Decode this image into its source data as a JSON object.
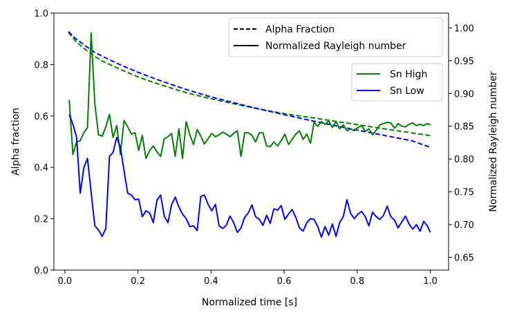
{
  "chart_data": {
    "type": "line",
    "xlabel": "Normalized time [s]",
    "ylabel_left": "Alpha fraction",
    "ylabel_right": "Normalized Rayleigh number",
    "xlim": [
      -0.03,
      1.05
    ],
    "ylim_left": [
      0.0,
      1.0
    ],
    "ylim_right": [
      0.6306,
      1.0225
    ],
    "xticks": [
      "0.0",
      "0.2",
      "0.4",
      "0.6",
      "0.8",
      "1.0"
    ],
    "yticks_left": [
      "0.0",
      "0.2",
      "0.4",
      "0.6",
      "0.8",
      "1.0"
    ],
    "yticks_right": [
      "0.65",
      "0.70",
      "0.75",
      "0.80",
      "0.85",
      "0.90",
      "0.95",
      "1.00"
    ],
    "legend_style": {
      "position": "top-right",
      "entries": [
        {
          "label": "Alpha Fraction",
          "dash": "dashed"
        },
        {
          "label": "Normalized Rayleigh number",
          "dash": "solid"
        }
      ]
    },
    "legend_series": {
      "position": "upper-right",
      "entries": [
        {
          "label": "Sn High",
          "color": "#008000"
        },
        {
          "label": "Sn Low",
          "color": "#0000ff"
        }
      ]
    },
    "series": [
      {
        "name": "Sn High alpha fraction",
        "axis": "left",
        "color": "#008000",
        "dash": "dashed",
        "x": [
          0.01,
          0.03,
          0.05,
          0.08,
          0.1,
          0.15,
          0.2,
          0.25,
          0.3,
          0.35,
          0.4,
          0.45,
          0.5,
          0.55,
          0.6,
          0.65,
          0.7,
          0.75,
          0.8,
          0.85,
          0.9,
          0.95,
          1.0
        ],
        "y": [
          0.925,
          0.89,
          0.865,
          0.833,
          0.815,
          0.782,
          0.752,
          0.727,
          0.704,
          0.684,
          0.667,
          0.651,
          0.636,
          0.622,
          0.609,
          0.598,
          0.588,
          0.577,
          0.566,
          0.555,
          0.544,
          0.534,
          0.523
        ]
      },
      {
        "name": "Sn Low alpha fraction",
        "axis": "left",
        "color": "#0000ff",
        "dash": "dashed",
        "x": [
          0.01,
          0.03,
          0.05,
          0.08,
          0.1,
          0.15,
          0.2,
          0.25,
          0.3,
          0.35,
          0.4,
          0.45,
          0.5,
          0.55,
          0.6,
          0.65,
          0.7,
          0.75,
          0.8,
          0.85,
          0.9,
          0.95,
          1.0
        ],
        "y": [
          0.928,
          0.9,
          0.879,
          0.849,
          0.834,
          0.8,
          0.77,
          0.743,
          0.718,
          0.695,
          0.674,
          0.656,
          0.638,
          0.621,
          0.605,
          0.589,
          0.574,
          0.559,
          0.545,
          0.531,
          0.517,
          0.503,
          0.478
        ]
      },
      {
        "name": "Sn High",
        "axis": "right",
        "color": "#008000",
        "dash": "solid",
        "x": [
          0.012,
          0.022,
          0.032,
          0.042,
          0.052,
          0.062,
          0.072,
          0.082,
          0.092,
          0.102,
          0.112,
          0.122,
          0.132,
          0.142,
          0.152,
          0.162,
          0.172,
          0.182,
          0.192,
          0.202,
          0.212,
          0.222,
          0.232,
          0.242,
          0.252,
          0.262,
          0.272,
          0.282,
          0.292,
          0.302,
          0.312,
          0.322,
          0.332,
          0.342,
          0.352,
          0.362,
          0.372,
          0.382,
          0.392,
          0.402,
          0.412,
          0.422,
          0.432,
          0.442,
          0.452,
          0.462,
          0.472,
          0.482,
          0.492,
          0.502,
          0.512,
          0.522,
          0.532,
          0.542,
          0.552,
          0.562,
          0.572,
          0.582,
          0.592,
          0.602,
          0.612,
          0.622,
          0.632,
          0.642,
          0.652,
          0.662,
          0.672,
          0.682,
          0.692,
          0.702,
          0.712,
          0.722,
          0.732,
          0.742,
          0.752,
          0.762,
          0.772,
          0.782,
          0.792,
          0.802,
          0.812,
          0.822,
          0.832,
          0.842,
          0.852,
          0.862,
          0.872,
          0.882,
          0.892,
          0.902,
          0.912,
          0.922,
          0.932,
          0.942,
          0.952,
          0.962,
          0.972,
          0.982,
          0.992,
          1.0
        ],
        "y": [
          0.89,
          0.807,
          0.826,
          0.828,
          0.84,
          0.848,
          0.992,
          0.885,
          0.837,
          0.835,
          0.849,
          0.868,
          0.833,
          0.851,
          0.807,
          0.859,
          0.849,
          0.838,
          0.84,
          0.813,
          0.836,
          0.801,
          0.813,
          0.82,
          0.811,
          0.804,
          0.831,
          0.834,
          0.839,
          0.804,
          0.846,
          0.801,
          0.857,
          0.837,
          0.822,
          0.845,
          0.835,
          0.823,
          0.831,
          0.839,
          0.834,
          0.837,
          0.841,
          0.838,
          0.834,
          0.839,
          0.843,
          0.804,
          0.84,
          0.84,
          0.836,
          0.826,
          0.84,
          0.84,
          0.82,
          0.819,
          0.826,
          0.82,
          0.828,
          0.838,
          0.822,
          0.83,
          0.838,
          0.843,
          0.83,
          0.838,
          0.824,
          0.856,
          0.85,
          0.857,
          0.853,
          0.858,
          0.848,
          0.857,
          0.846,
          0.852,
          0.843,
          0.846,
          0.843,
          0.848,
          0.851,
          0.842,
          0.846,
          0.837,
          0.844,
          0.852,
          0.854,
          0.856,
          0.855,
          0.847,
          0.854,
          0.85,
          0.849,
          0.853,
          0.855,
          0.851,
          0.853,
          0.851,
          0.854,
          0.852
        ]
      },
      {
        "name": "Sn Low",
        "axis": "right",
        "color": "#0000ff",
        "dash": "solid",
        "x": [
          0.012,
          0.022,
          0.032,
          0.042,
          0.052,
          0.062,
          0.072,
          0.082,
          0.092,
          0.102,
          0.112,
          0.122,
          0.132,
          0.142,
          0.152,
          0.162,
          0.172,
          0.182,
          0.192,
          0.202,
          0.212,
          0.222,
          0.232,
          0.242,
          0.252,
          0.262,
          0.272,
          0.282,
          0.292,
          0.302,
          0.312,
          0.322,
          0.332,
          0.342,
          0.352,
          0.362,
          0.372,
          0.382,
          0.392,
          0.402,
          0.412,
          0.422,
          0.432,
          0.442,
          0.452,
          0.462,
          0.472,
          0.482,
          0.492,
          0.502,
          0.512,
          0.522,
          0.532,
          0.542,
          0.552,
          0.562,
          0.572,
          0.582,
          0.592,
          0.602,
          0.612,
          0.622,
          0.632,
          0.642,
          0.652,
          0.662,
          0.672,
          0.682,
          0.692,
          0.702,
          0.712,
          0.722,
          0.732,
          0.742,
          0.752,
          0.762,
          0.772,
          0.782,
          0.792,
          0.802,
          0.812,
          0.822,
          0.832,
          0.842,
          0.852,
          0.862,
          0.872,
          0.882,
          0.892,
          0.902,
          0.912,
          0.922,
          0.932,
          0.942,
          0.952,
          0.962,
          0.972,
          0.982,
          0.992,
          1.0
        ],
        "y": [
          0.868,
          0.853,
          0.833,
          0.748,
          0.787,
          0.801,
          0.749,
          0.698,
          0.692,
          0.682,
          0.694,
          0.804,
          0.81,
          0.833,
          0.818,
          0.782,
          0.748,
          0.745,
          0.738,
          0.739,
          0.712,
          0.721,
          0.718,
          0.703,
          0.737,
          0.745,
          0.713,
          0.703,
          0.73,
          0.742,
          0.727,
          0.716,
          0.709,
          0.697,
          0.698,
          0.691,
          0.743,
          0.745,
          0.731,
          0.721,
          0.731,
          0.698,
          0.694,
          0.699,
          0.713,
          0.703,
          0.688,
          0.695,
          0.711,
          0.718,
          0.73,
          0.712,
          0.708,
          0.699,
          0.714,
          0.702,
          0.724,
          0.722,
          0.729,
          0.708,
          0.716,
          0.723,
          0.711,
          0.695,
          0.69,
          0.703,
          0.709,
          0.708,
          0.697,
          0.681,
          0.697,
          0.684,
          0.701,
          0.682,
          0.703,
          0.712,
          0.738,
          0.717,
          0.709,
          0.716,
          0.72,
          0.712,
          0.698,
          0.719,
          0.712,
          0.708,
          0.714,
          0.728,
          0.712,
          0.707,
          0.695,
          0.704,
          0.713,
          0.701,
          0.693,
          0.7,
          0.69,
          0.705,
          0.698,
          0.688
        ]
      }
    ]
  }
}
